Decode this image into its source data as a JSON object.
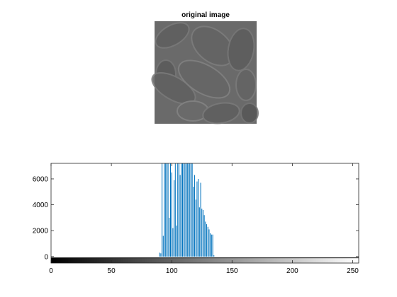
{
  "image_panel": {
    "title": "original image",
    "background_color": "#6a6a6a",
    "image_description_icon": "pollen-grains-image"
  },
  "chart_data": {
    "type": "bar",
    "title": "",
    "xlabel": "",
    "ylabel": "",
    "xlim": [
      0,
      255
    ],
    "ylim": [
      -500,
      7200
    ],
    "xticks": [
      0,
      50,
      100,
      150,
      200,
      250
    ],
    "yticks": [
      0,
      2000,
      4000,
      6000
    ],
    "bar_color": "#0072bd",
    "colorbar": "grayscale 0-255",
    "grid": false,
    "x": [
      90,
      91,
      92,
      93,
      94,
      95,
      96,
      97,
      98,
      99,
      100,
      101,
      102,
      103,
      104,
      105,
      106,
      107,
      108,
      109,
      110,
      111,
      112,
      113,
      114,
      115,
      116,
      117,
      118,
      119,
      120,
      121,
      122,
      123,
      124,
      125,
      126,
      127,
      128,
      129,
      130,
      131,
      132,
      133,
      134,
      135
    ],
    "values": [
      300,
      250,
      7200,
      1600,
      7200,
      7200,
      7200,
      7200,
      3000,
      7200,
      6500,
      2200,
      5900,
      7200,
      2400,
      7200,
      7200,
      6300,
      7200,
      7200,
      7200,
      7200,
      7200,
      7200,
      7200,
      7200,
      7200,
      7200,
      5400,
      6300,
      4400,
      5800,
      6000,
      3800,
      5700,
      3700,
      3600,
      3200,
      2700,
      2500,
      2300,
      2100,
      1800,
      1700,
      1700,
      100
    ]
  }
}
